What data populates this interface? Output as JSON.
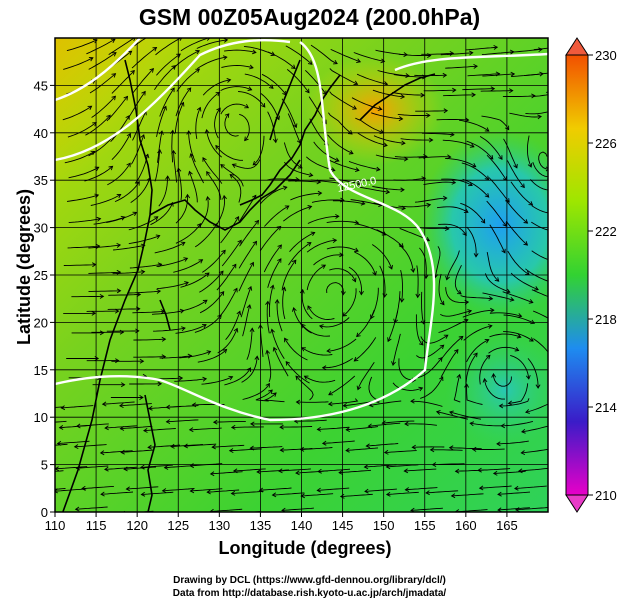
{
  "title": "GSM 00Z05Aug2024 (200.0hPa)",
  "xlabel": "Longitude (degrees)",
  "ylabel": "Latitude  (degrees)",
  "credits": [
    "Drawing by DCL (https://www.gfd-dennou.org/library/dcl/)",
    "Data from http://database.rish.kyoto-u.ac.jp/arch/jmadata/"
  ],
  "chart_data": {
    "type": "heatmap",
    "field": "geopotential height (200 hPa) with streamlines",
    "x_ticks": [
      "110",
      "115",
      "120",
      "125",
      "130",
      "135",
      "140",
      "145",
      "150",
      "155",
      "160",
      "165"
    ],
    "y_ticks": [
      "0",
      "5",
      "10",
      "15",
      "20",
      "25",
      "30",
      "35",
      "40",
      "45"
    ],
    "xlim": [
      110,
      170
    ],
    "ylim": [
      0,
      50
    ],
    "colorbar": {
      "ticks": [
        "210",
        "214",
        "218",
        "222",
        "226",
        "230"
      ],
      "range": [
        210,
        230
      ],
      "colors": [
        "#e800c8",
        "#3a1cc8",
        "#1e8cf0",
        "#32d232",
        "#9ee600",
        "#f0cc00",
        "#f25000"
      ]
    },
    "contour_label": "12500.0",
    "grid": true
  }
}
